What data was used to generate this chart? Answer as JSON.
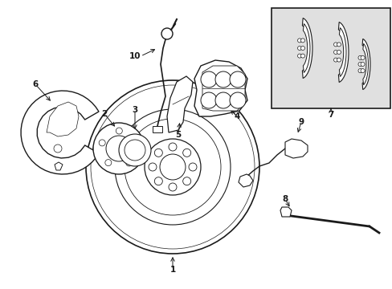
{
  "bg_color": "#ffffff",
  "line_color": "#1a1a1a",
  "box_bg": "#e0e0e0",
  "figsize": [
    4.89,
    3.6
  ],
  "dpi": 100
}
